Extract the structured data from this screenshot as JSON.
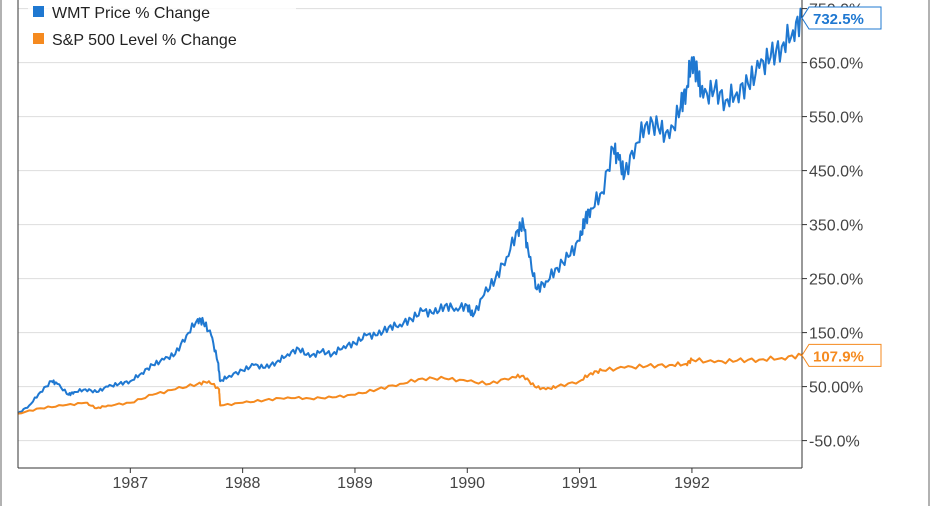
{
  "chart_data": {
    "type": "line",
    "title": "",
    "xlabel": "",
    "ylabel": "",
    "x_tick_labels": [
      "1987",
      "1988",
      "1989",
      "1990",
      "1991",
      "1992"
    ],
    "x_tick_values": [
      1987,
      1988,
      1989,
      1990,
      1991,
      1992
    ],
    "xlim": [
      1986.0,
      1992.98
    ],
    "y_tick_labels": [
      "-50.0%",
      "50.00%",
      "150.0%",
      "250.0%",
      "350.0%",
      "450.0%",
      "550.0%",
      "650.0%",
      "750.0%"
    ],
    "y_tick_values": [
      -50,
      50,
      150,
      250,
      350,
      450,
      550,
      650,
      750
    ],
    "ylim": [
      -100,
      760
    ],
    "grid": true,
    "legend": "top-left",
    "series": [
      {
        "name": "WMT Price % Change",
        "color": "#1f78d1",
        "end_label": "732.5%",
        "x": [
          1986.0,
          1986.1,
          1986.2,
          1986.3,
          1986.35,
          1986.45,
          1986.5,
          1986.6,
          1986.7,
          1986.8,
          1986.9,
          1987.0,
          1987.1,
          1987.2,
          1987.3,
          1987.4,
          1987.5,
          1987.6,
          1987.65,
          1987.72,
          1987.78,
          1987.8,
          1987.88,
          1988.0,
          1988.1,
          1988.2,
          1988.3,
          1988.4,
          1988.5,
          1988.6,
          1988.7,
          1988.8,
          1988.9,
          1989.0,
          1989.1,
          1989.2,
          1989.3,
          1989.4,
          1989.5,
          1989.6,
          1989.7,
          1989.8,
          1989.9,
          1990.0,
          1990.05,
          1990.15,
          1990.25,
          1990.35,
          1990.45,
          1990.5,
          1990.55,
          1990.62,
          1990.7,
          1990.8,
          1990.9,
          1991.0,
          1991.05,
          1991.1,
          1991.2,
          1991.3,
          1991.35,
          1991.4,
          1991.5,
          1991.6,
          1991.7,
          1991.8,
          1991.9,
          1991.95,
          1992.0,
          1992.05,
          1992.1,
          1992.2,
          1992.3,
          1992.4,
          1992.5,
          1992.6,
          1992.7,
          1992.8,
          1992.9,
          1992.98
        ],
        "y": [
          0,
          15,
          40,
          60,
          55,
          35,
          40,
          45,
          40,
          50,
          55,
          60,
          75,
          90,
          100,
          110,
          145,
          175,
          170,
          145,
          95,
          60,
          70,
          80,
          90,
          85,
          95,
          110,
          120,
          105,
          115,
          110,
          125,
          130,
          145,
          145,
          160,
          165,
          175,
          190,
          185,
          200,
          195,
          200,
          180,
          220,
          250,
          290,
          340,
          350,
          290,
          230,
          245,
          270,
          290,
          320,
          360,
          380,
          410,
          490,
          470,
          440,
          500,
          540,
          530,
          510,
          570,
          600,
          660,
          625,
          585,
          600,
          580,
          595,
          610,
          640,
          660,
          680,
          710,
          732.5
        ]
      },
      {
        "name": "S&P 500 Level % Change",
        "color": "#f58a1f",
        "end_label": "107.9%",
        "x": [
          1986.0,
          1986.2,
          1986.4,
          1986.6,
          1986.7,
          1986.8,
          1987.0,
          1987.2,
          1987.4,
          1987.6,
          1987.7,
          1987.79,
          1987.8,
          1988.0,
          1988.2,
          1988.4,
          1988.6,
          1988.8,
          1989.0,
          1989.2,
          1989.4,
          1989.6,
          1989.8,
          1990.0,
          1990.2,
          1990.4,
          1990.5,
          1990.6,
          1990.7,
          1990.8,
          1991.0,
          1991.1,
          1991.2,
          1991.4,
          1991.6,
          1991.8,
          1991.95,
          1992.0,
          1992.2,
          1992.4,
          1992.6,
          1992.8,
          1992.98
        ],
        "y": [
          0,
          10,
          15,
          20,
          10,
          15,
          20,
          35,
          45,
          55,
          60,
          45,
          15,
          20,
          25,
          30,
          28,
          30,
          35,
          45,
          55,
          65,
          65,
          60,
          55,
          68,
          70,
          50,
          45,
          50,
          60,
          75,
          80,
          85,
          88,
          90,
          92,
          100,
          95,
          98,
          100,
          103,
          107.9
        ]
      }
    ]
  }
}
